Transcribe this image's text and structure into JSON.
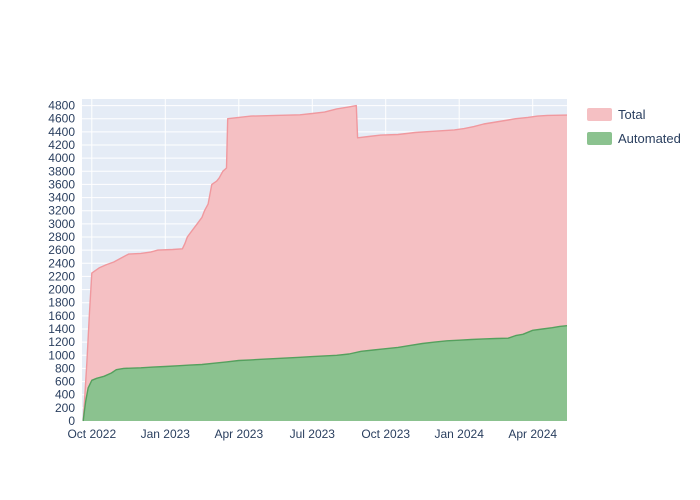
{
  "chart_data": {
    "type": "area",
    "title": "",
    "xlabel": "",
    "ylabel": "",
    "plot_bgcolor": "#e5ecf6",
    "grid_color": "#ffffff",
    "tick_color": "#2a3f5f",
    "x_unit": "months since Oct 2022",
    "x_range": [
      -0.4,
      19.4
    ],
    "ylim": [
      0,
      4900
    ],
    "grid": true,
    "legend_position": "top-right",
    "y_ticks": [
      0,
      200,
      400,
      600,
      800,
      1000,
      1200,
      1400,
      1600,
      1800,
      2000,
      2200,
      2400,
      2600,
      2800,
      3000,
      3200,
      3400,
      3600,
      3800,
      4000,
      4200,
      4400,
      4600,
      4800
    ],
    "x_ticks": [
      {
        "x": 0,
        "label": "Oct 2022"
      },
      {
        "x": 3,
        "label": "Jan 2023"
      },
      {
        "x": 6,
        "label": "Apr 2023"
      },
      {
        "x": 9,
        "label": "Jul 2023"
      },
      {
        "x": 12,
        "label": "Oct 2023"
      },
      {
        "x": 15,
        "label": "Jan 2024"
      },
      {
        "x": 18,
        "label": "Apr 2024"
      }
    ],
    "series": [
      {
        "name": "Total",
        "fill": "#f5c0c3",
        "line": "#f0989e",
        "points": [
          [
            -0.35,
            0
          ],
          [
            -0.28,
            400
          ],
          [
            -0.2,
            900
          ],
          [
            -0.1,
            1600
          ],
          [
            0.0,
            2250
          ],
          [
            0.3,
            2330
          ],
          [
            0.6,
            2380
          ],
          [
            0.9,
            2420
          ],
          [
            1.2,
            2480
          ],
          [
            1.5,
            2540
          ],
          [
            2.0,
            2550
          ],
          [
            2.4,
            2570
          ],
          [
            2.7,
            2600
          ],
          [
            3.3,
            2610
          ],
          [
            3.7,
            2620
          ],
          [
            3.8,
            2700
          ],
          [
            3.9,
            2800
          ],
          [
            4.1,
            2900
          ],
          [
            4.3,
            3000
          ],
          [
            4.5,
            3100
          ],
          [
            4.6,
            3200
          ],
          [
            4.75,
            3300
          ],
          [
            4.9,
            3600
          ],
          [
            5.1,
            3650
          ],
          [
            5.2,
            3700
          ],
          [
            5.35,
            3800
          ],
          [
            5.5,
            3850
          ],
          [
            5.55,
            4600
          ],
          [
            6.0,
            4620
          ],
          [
            6.5,
            4640
          ],
          [
            7.5,
            4650
          ],
          [
            8.5,
            4660
          ],
          [
            9.0,
            4680
          ],
          [
            9.5,
            4700
          ],
          [
            10.0,
            4750
          ],
          [
            10.5,
            4780
          ],
          [
            10.8,
            4800
          ],
          [
            10.85,
            4310
          ],
          [
            11.3,
            4330
          ],
          [
            11.8,
            4350
          ],
          [
            12.5,
            4360
          ],
          [
            13.2,
            4390
          ],
          [
            14.0,
            4410
          ],
          [
            14.8,
            4430
          ],
          [
            15.2,
            4450
          ],
          [
            15.6,
            4480
          ],
          [
            16.0,
            4520
          ],
          [
            16.5,
            4550
          ],
          [
            17.0,
            4580
          ],
          [
            17.3,
            4600
          ],
          [
            17.8,
            4620
          ],
          [
            18.2,
            4640
          ],
          [
            18.6,
            4650
          ],
          [
            19.4,
            4655
          ]
        ]
      },
      {
        "name": "Automated",
        "fill": "#8bc28f",
        "line": "#55a05e",
        "points": [
          [
            -0.35,
            0
          ],
          [
            -0.3,
            150
          ],
          [
            -0.25,
            300
          ],
          [
            -0.15,
            500
          ],
          [
            0.0,
            620
          ],
          [
            0.2,
            650
          ],
          [
            0.5,
            680
          ],
          [
            0.8,
            730
          ],
          [
            1.0,
            780
          ],
          [
            1.3,
            800
          ],
          [
            2.0,
            810
          ],
          [
            2.5,
            820
          ],
          [
            3.0,
            830
          ],
          [
            3.5,
            840
          ],
          [
            4.0,
            850
          ],
          [
            4.5,
            860
          ],
          [
            5.0,
            880
          ],
          [
            5.5,
            900
          ],
          [
            6.0,
            920
          ],
          [
            6.5,
            930
          ],
          [
            7.0,
            940
          ],
          [
            7.5,
            950
          ],
          [
            8.0,
            960
          ],
          [
            8.5,
            970
          ],
          [
            9.0,
            980
          ],
          [
            9.5,
            990
          ],
          [
            10.0,
            1000
          ],
          [
            10.5,
            1020
          ],
          [
            11.0,
            1060
          ],
          [
            11.5,
            1080
          ],
          [
            12.0,
            1100
          ],
          [
            12.5,
            1120
          ],
          [
            13.0,
            1150
          ],
          [
            13.5,
            1180
          ],
          [
            14.0,
            1200
          ],
          [
            14.5,
            1220
          ],
          [
            15.0,
            1230
          ],
          [
            15.5,
            1240
          ],
          [
            16.0,
            1250
          ],
          [
            16.5,
            1255
          ],
          [
            17.0,
            1260
          ],
          [
            17.3,
            1300
          ],
          [
            17.6,
            1320
          ],
          [
            18.0,
            1380
          ],
          [
            18.4,
            1400
          ],
          [
            18.8,
            1420
          ],
          [
            19.1,
            1440
          ],
          [
            19.4,
            1450
          ]
        ]
      }
    ]
  }
}
